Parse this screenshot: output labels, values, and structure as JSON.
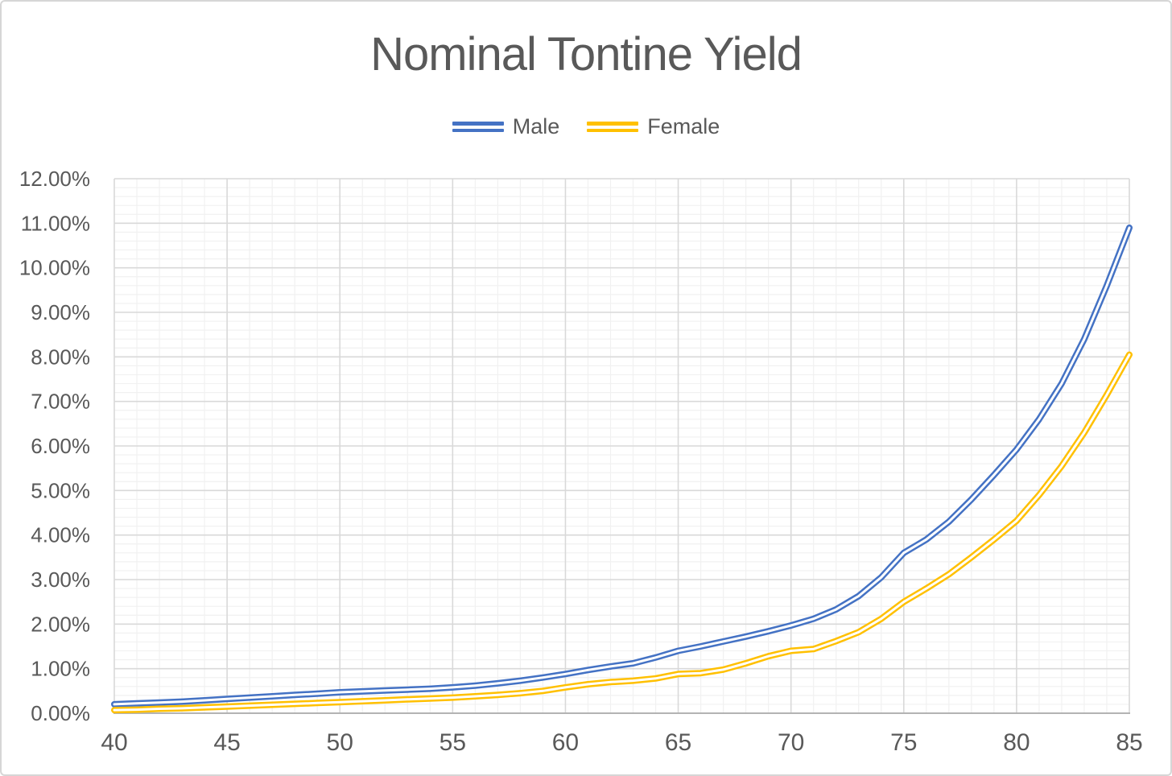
{
  "figure": {
    "title": "Nominal Tontine Yield"
  },
  "legend": {
    "position": "top-center",
    "items": [
      {
        "label": "Male",
        "color": "#4472C4",
        "marker": "double-line"
      },
      {
        "label": "Female",
        "color": "#FFC000",
        "marker": "double-line"
      }
    ]
  },
  "colors": {
    "background": "#FFFFFF",
    "frame_border": "#D6D6D6",
    "title_text": "#595959",
    "axis_text": "#595959",
    "major_gridline": "#D9D9D9",
    "minor_gridline": "#F1F1F1",
    "axis_line": "#B3B3B3",
    "male_line": "#4472C4",
    "female_line": "#FFC000",
    "line_inner_gap": "#FFFFFF"
  },
  "chart_data": {
    "type": "line",
    "title": "Nominal Tontine Yield",
    "xlabel": "",
    "ylabel": "",
    "line_style": "double-line (colored stroke with white center)",
    "grid": "major and minor, both axes",
    "legend_position": "top",
    "x_axis": {
      "min": 40,
      "max": 85,
      "major_step": 5,
      "minor_step": 1,
      "tick_values": [
        40,
        45,
        50,
        55,
        60,
        65,
        70,
        75,
        80,
        85
      ],
      "tick_labels": [
        "40",
        "45",
        "50",
        "55",
        "60",
        "65",
        "70",
        "75",
        "80",
        "85"
      ]
    },
    "y_axis": {
      "min": 0,
      "max": 12,
      "major_step": 1,
      "minor_step": 0.2,
      "unit": "percent",
      "tick_values": [
        0,
        1,
        2,
        3,
        4,
        5,
        6,
        7,
        8,
        9,
        10,
        11,
        12
      ],
      "tick_labels": [
        "0.00%",
        "1.00%",
        "2.00%",
        "3.00%",
        "4.00%",
        "5.00%",
        "6.00%",
        "7.00%",
        "8.00%",
        "9.00%",
        "10.00%",
        "11.00%",
        "12.00%"
      ]
    },
    "x": [
      40,
      41,
      42,
      43,
      44,
      45,
      46,
      47,
      48,
      49,
      50,
      51,
      52,
      53,
      54,
      55,
      56,
      57,
      58,
      59,
      60,
      61,
      62,
      63,
      64,
      65,
      66,
      67,
      68,
      69,
      70,
      71,
      72,
      73,
      74,
      75,
      76,
      77,
      78,
      79,
      80,
      81,
      82,
      83,
      84,
      85
    ],
    "series": [
      {
        "name": "Male",
        "color": "#4472C4",
        "values_percent": [
          0.2,
          0.22,
          0.24,
          0.26,
          0.29,
          0.32,
          0.35,
          0.38,
          0.41,
          0.44,
          0.47,
          0.49,
          0.51,
          0.53,
          0.55,
          0.58,
          0.62,
          0.67,
          0.73,
          0.8,
          0.88,
          0.97,
          1.05,
          1.12,
          1.25,
          1.4,
          1.5,
          1.61,
          1.72,
          1.84,
          1.97,
          2.12,
          2.33,
          2.63,
          3.05,
          3.6,
          3.9,
          4.3,
          4.8,
          5.35,
          5.92,
          6.6,
          7.4,
          8.4,
          9.6,
          10.9
        ]
      },
      {
        "name": "Female",
        "color": "#FFC000",
        "values_percent": [
          0.07,
          0.08,
          0.1,
          0.11,
          0.13,
          0.15,
          0.17,
          0.19,
          0.21,
          0.23,
          0.25,
          0.27,
          0.29,
          0.31,
          0.33,
          0.35,
          0.38,
          0.41,
          0.45,
          0.5,
          0.58,
          0.65,
          0.7,
          0.73,
          0.78,
          0.88,
          0.9,
          0.98,
          1.12,
          1.28,
          1.4,
          1.44,
          1.62,
          1.82,
          2.12,
          2.5,
          2.8,
          3.12,
          3.5,
          3.9,
          4.32,
          4.9,
          5.55,
          6.3,
          7.15,
          8.05
        ]
      }
    ]
  }
}
